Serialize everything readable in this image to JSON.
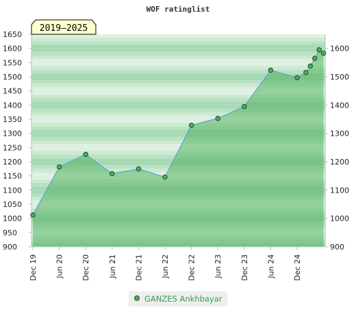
{
  "chart_data": {
    "type": "area",
    "title": "WOF ratinglist",
    "badge": "2019–2025",
    "xlabel": "",
    "ylabel": "",
    "ylim": [
      900,
      1650
    ],
    "y_ticks_left": [
      900,
      950,
      1000,
      1050,
      1100,
      1150,
      1200,
      1250,
      1300,
      1350,
      1400,
      1450,
      1500,
      1550,
      1600,
      1650
    ],
    "y_ticks_right": [
      900,
      1000,
      1100,
      1200,
      1300,
      1400,
      1500,
      1600
    ],
    "x_ticks": [
      "Dec 19",
      "Jun 20",
      "Dec 20",
      "Jun 21",
      "Dec 21",
      "Jun 22",
      "Dec 22",
      "Jun 23",
      "Dec 23",
      "Jun 24",
      "Dec 24"
    ],
    "series": [
      {
        "name": "GANZES Ankhbayar",
        "color": "#4cae5a",
        "points": [
          {
            "x": "2019-12",
            "y": 1012
          },
          {
            "x": "2020-06",
            "y": 1182
          },
          {
            "x": "2020-12",
            "y": 1226
          },
          {
            "x": "2021-06",
            "y": 1158
          },
          {
            "x": "2021-12",
            "y": 1175
          },
          {
            "x": "2022-06",
            "y": 1146
          },
          {
            "x": "2022-12",
            "y": 1329
          },
          {
            "x": "2023-06",
            "y": 1353
          },
          {
            "x": "2023-12",
            "y": 1395
          },
          {
            "x": "2024-06",
            "y": 1523
          },
          {
            "x": "2024-12",
            "y": 1497
          },
          {
            "x": "2025-02",
            "y": 1515
          },
          {
            "x": "2025-03",
            "y": 1538
          },
          {
            "x": "2025-04",
            "y": 1565
          },
          {
            "x": "2025-05",
            "y": 1595
          },
          {
            "x": "2025-06",
            "y": 1583
          }
        ]
      }
    ],
    "legend": {
      "position": "bottom-center"
    },
    "grid": true
  },
  "colors": {
    "band_dark": "#a8d9b5",
    "band_light": "#ddf0e2",
    "area_fill": "#4cae5a",
    "line": "#5aa3d6",
    "axis": "#9ccfa8",
    "badge_bg": "#ffffcc"
  }
}
